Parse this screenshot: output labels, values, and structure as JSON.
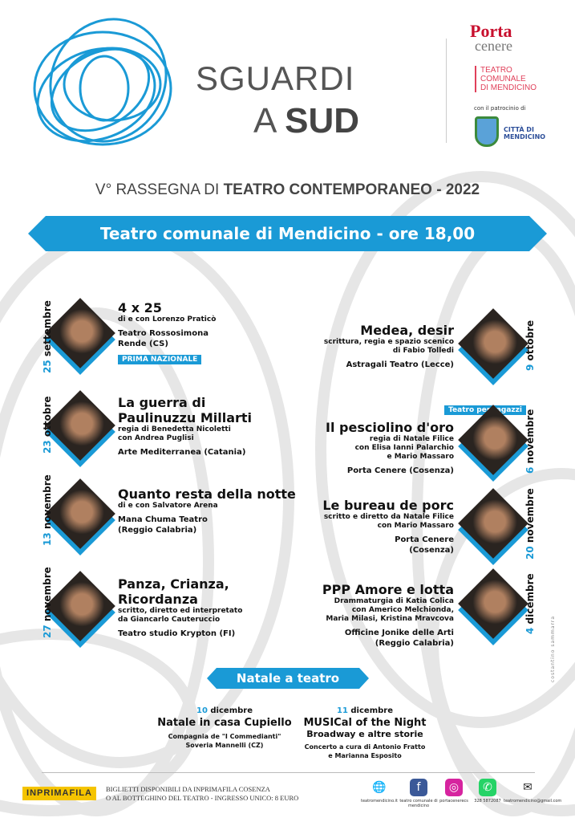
{
  "header": {
    "title_line1": "SGUARDI",
    "title_line2_a": "A ",
    "title_line2_b": "SUD",
    "subtitle_a": "V° RASSEGNA DI ",
    "subtitle_b": "TEATRO CONTEMPORANEO - 2022"
  },
  "logos": {
    "porta_a": "Porta",
    "porta_b": "cenere",
    "teatro": [
      "TEATRO",
      "COMUNALE",
      "DI MENDICINO"
    ],
    "patrocinio": "con il patrocinio di",
    "citta": [
      "CITTÀ DI",
      "MENDICINO"
    ]
  },
  "banner": "Teatro comunale di Mendicino - ore 18,00",
  "accent": "#1a9ad6",
  "events": [
    {
      "day": "25",
      "month": "settembre",
      "title": [
        "4 x 25"
      ],
      "credits": [
        "di e con Lorenzo Praticò"
      ],
      "company": [
        "Teatro Rossosimona",
        "Rende (CS)"
      ],
      "badge": "PRIMA NAZIONALE"
    },
    {
      "day": "9",
      "month": "ottobre",
      "title": [
        "Medea, desir"
      ],
      "credits": [
        "scrittura, regia e spazio scenico",
        "di Fabio Tolledi"
      ],
      "company": [
        "Astragali Teatro (Lecce)"
      ]
    },
    {
      "day": "23",
      "month": "ottobre",
      "title": [
        "La guerra di",
        "Paulinuzzu Millarti"
      ],
      "credits": [
        "regia di Benedetta Nicoletti",
        "con Andrea Puglisi"
      ],
      "company": [
        "Arte Mediterranea (Catania)"
      ]
    },
    {
      "day": "6",
      "month": "novembre",
      "title": [
        "Il pesciolino d'oro"
      ],
      "credits": [
        "regia di Natale Filice",
        "con Elisa Ianni Palarchio",
        "e Mario Massaro"
      ],
      "company": [
        "Porta Cenere (Cosenza)"
      ],
      "badge": "Teatro per ragazzi"
    },
    {
      "day": "13",
      "month": "novembre",
      "title": [
        "Quanto resta della notte"
      ],
      "credits": [
        "di e con Salvatore Arena"
      ],
      "company": [
        "Mana Chuma Teatro",
        "(Reggio Calabria)"
      ]
    },
    {
      "day": "20",
      "month": "novembre",
      "title": [
        "Le bureau de porc"
      ],
      "credits": [
        "scritto e diretto da Natale Filice",
        "con Mario Massaro"
      ],
      "company": [
        "Porta Cenere",
        "(Cosenza)"
      ]
    },
    {
      "day": "27",
      "month": "novembre",
      "title": [
        "Panza, Crianza,",
        "Ricordanza"
      ],
      "credits": [
        "scritto, diretto ed interpretato",
        "da Giancarlo Cauteruccio"
      ],
      "company": [
        "Teatro studio Krypton (FI)"
      ]
    },
    {
      "day": "4",
      "month": "dicembre",
      "title": [
        "PPP Amore e lotta"
      ],
      "credits": [
        "Drammaturgia di Katia Colica",
        "con Americo Melchionda,",
        "Maria Milasi, Kristina Mravcova"
      ],
      "company": [
        "Officine Jonike delle Arti",
        "(Reggio Calabria)"
      ]
    }
  ],
  "natale": {
    "banner": "Natale a teatro",
    "shows": [
      {
        "day": "10",
        "month": " dicembre",
        "title": "Natale in casa Cupiello",
        "subtitle": "",
        "lines": [
          "Compagnia de \"I Commedianti\"",
          "Soveria Mannelli (CZ)"
        ]
      },
      {
        "day": "11",
        "month": " dicembre",
        "title": "MUSICal of the Night",
        "subtitle": "Broadway e altre storie",
        "lines": [
          "Concerto a cura di Antonio Fratto",
          "e Marianna Esposito"
        ]
      }
    ]
  },
  "footer": {
    "inprimafila": "INPRIMAFILA",
    "tickets": [
      "BIGLIETTI DISPONIBILI DA INPRIMAFILA COSENZA",
      "O AL BOTTEGHINO DEL TEATRO - INGRESSO UNICO: 8 EURO"
    ],
    "social": [
      {
        "icon": "globe-icon",
        "glyph": "🌐",
        "label": "teatromendicino.it",
        "color": "#fff"
      },
      {
        "icon": "facebook-icon",
        "glyph": "f",
        "label": "teatro comunale di mendicino",
        "color": "#3b5998"
      },
      {
        "icon": "instagram-icon",
        "glyph": "◎",
        "label": "portacenerecs",
        "color": "#d6249f"
      },
      {
        "icon": "whatsapp-icon",
        "glyph": "✆",
        "label": "328 5872087",
        "color": "#25d366"
      },
      {
        "icon": "mail-icon",
        "glyph": "✉",
        "label": "teatromendicino@gmail.com",
        "color": "#fff"
      }
    ],
    "credit": "costantino sammarra"
  }
}
